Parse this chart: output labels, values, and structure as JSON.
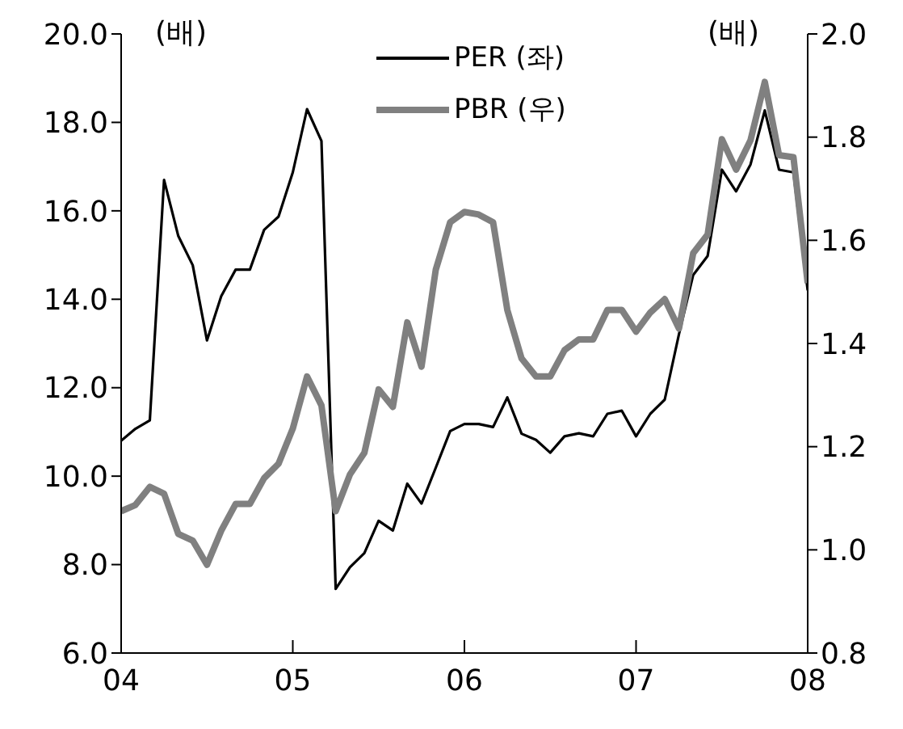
{
  "chart_data": {
    "type": "line",
    "annotations": [
      "(배)",
      "(배)"
    ],
    "legend": "top",
    "grid": false,
    "marker": "none",
    "x": [
      2004,
      2004.083,
      2004.167,
      2004.25,
      2004.333,
      2004.417,
      2004.5,
      2004.583,
      2004.667,
      2004.75,
      2004.833,
      2004.917,
      2005,
      2005.083,
      2005.167,
      2005.25,
      2005.333,
      2005.417,
      2005.5,
      2005.583,
      2005.667,
      2005.75,
      2005.833,
      2005.917,
      2006,
      2006.083,
      2006.167,
      2006.25,
      2006.333,
      2006.417,
      2006.5,
      2006.583,
      2006.667,
      2006.75,
      2006.833,
      2006.917,
      2007,
      2007.083,
      2007.167,
      2007.25,
      2007.333,
      2007.417,
      2007.5,
      2007.583,
      2007.667,
      2007.75,
      2007.833,
      2007.917,
      2008
    ],
    "xlim": [
      2004,
      2008
    ],
    "xticks": [
      {
        "value": 2004,
        "label": "04"
      },
      {
        "value": 2005,
        "label": "05"
      },
      {
        "value": 2006,
        "label": "06"
      },
      {
        "value": 2007,
        "label": "07"
      },
      {
        "value": 2008,
        "label": "08"
      }
    ],
    "ylim": [
      6,
      20
    ],
    "yticks": [
      {
        "value": 6,
        "label": "6.0"
      },
      {
        "value": 8,
        "label": "8.0"
      },
      {
        "value": 10,
        "label": "10.0"
      },
      {
        "value": 12,
        "label": "12.0"
      },
      {
        "value": 14,
        "label": "14.0"
      },
      {
        "value": 16,
        "label": "16.0"
      },
      {
        "value": 18,
        "label": "18.0"
      },
      {
        "value": 20,
        "label": "20.0"
      }
    ],
    "y2lim": [
      0.8,
      2.0
    ],
    "y2ticks": [
      {
        "value": 0.8,
        "label": "0.8"
      },
      {
        "value": 1.0,
        "label": "1.0"
      },
      {
        "value": 1.2,
        "label": "1.2"
      },
      {
        "value": 1.4,
        "label": "1.4"
      },
      {
        "value": 1.6,
        "label": "1.6"
      },
      {
        "value": 1.8,
        "label": "1.8"
      },
      {
        "value": 2.0,
        "label": "2.0"
      }
    ],
    "series": [
      {
        "name": "PER (좌)",
        "color": "#000000",
        "values": [
          10.8,
          11.07,
          11.26,
          16.7,
          15.43,
          14.77,
          13.07,
          14.07,
          14.67,
          14.67,
          15.57,
          15.87,
          16.87,
          18.3,
          17.58,
          7.45,
          7.94,
          8.26,
          8.99,
          8.77,
          9.83,
          9.38,
          10.19,
          11.02,
          11.18,
          11.18,
          11.11,
          11.78,
          10.96,
          10.82,
          10.53,
          10.9,
          10.97,
          10.9,
          11.41,
          11.48,
          10.9,
          11.41,
          11.73,
          13.21,
          14.55,
          14.98,
          16.93,
          16.44,
          17.05,
          18.27,
          16.93,
          16.87,
          14.2
        ]
      },
      {
        "name": "PBR (우)",
        "color": "#808080",
        "axis": "y2",
        "values": [
          1.075,
          1.087,
          1.122,
          1.109,
          1.031,
          1.018,
          0.971,
          1.037,
          1.089,
          1.089,
          1.139,
          1.167,
          1.235,
          1.336,
          1.28,
          1.075,
          1.146,
          1.188,
          1.311,
          1.277,
          1.441,
          1.355,
          1.543,
          1.635,
          1.655,
          1.65,
          1.635,
          1.465,
          1.371,
          1.336,
          1.336,
          1.387,
          1.408,
          1.408,
          1.465,
          1.465,
          1.423,
          1.46,
          1.486,
          1.429,
          1.575,
          1.611,
          1.796,
          1.737,
          1.794,
          1.907,
          1.765,
          1.761,
          1.517
        ]
      }
    ]
  }
}
